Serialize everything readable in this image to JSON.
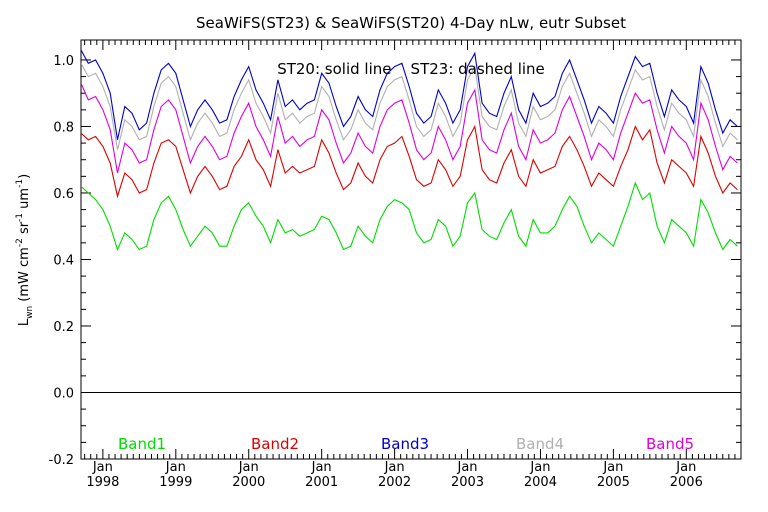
{
  "chart_data": {
    "type": "line",
    "title": "SeaWiFS(ST23) & SeaWiFS(ST20) 4-Day nLw, eutr Subset",
    "annotation": "ST20: solid line    ST23: dashed line",
    "ylabel": "L_wn (mW cm^-2 sr^-1 um^-1)",
    "ylabel_parts": {
      "main": "L",
      "sub": "wn",
      "unit_open": " (mW cm",
      "sup1": "-2",
      "unit_mid1": " sr",
      "sup2": "-1",
      "unit_mid2": " um",
      "sup3": "-1",
      "unit_close": ")"
    },
    "xlim": [
      1997.7,
      2006.75
    ],
    "ylim": [
      -0.2,
      1.06
    ],
    "yticks": [
      "-0.2",
      "0.0",
      "0.2",
      "0.4",
      "0.6",
      "0.8",
      "1.0"
    ],
    "ytick_values": [
      -0.2,
      0.0,
      0.2,
      0.4,
      0.6,
      0.8,
      1.0
    ],
    "xticks_month": [
      "Jan",
      "Jan",
      "Jan",
      "Jan",
      "Jan",
      "Jan",
      "Jan",
      "Jan",
      "Jan"
    ],
    "xticks_year": [
      "1998",
      "1999",
      "2000",
      "2001",
      "2002",
      "2003",
      "2004",
      "2005",
      "2006"
    ],
    "xtick_values": [
      1998,
      1999,
      2000,
      2001,
      2002,
      2003,
      2004,
      2005,
      2006
    ],
    "zero_line": 0.0,
    "x": [
      1997.7,
      1997.8,
      1997.9,
      1998.0,
      1998.1,
      1998.2,
      1998.3,
      1998.4,
      1998.5,
      1998.6,
      1998.7,
      1998.8,
      1998.9,
      1999.0,
      1999.1,
      1999.2,
      1999.3,
      1999.4,
      1999.5,
      1999.6,
      1999.7,
      1999.8,
      1999.9,
      2000.0,
      2000.1,
      2000.2,
      2000.3,
      2000.4,
      2000.5,
      2000.6,
      2000.7,
      2000.8,
      2000.9,
      2001.0,
      2001.1,
      2001.2,
      2001.3,
      2001.4,
      2001.5,
      2001.6,
      2001.7,
      2001.8,
      2001.9,
      2002.0,
      2002.1,
      2002.2,
      2002.3,
      2002.4,
      2002.5,
      2002.6,
      2002.7,
      2002.8,
      2002.9,
      2003.0,
      2003.1,
      2003.2,
      2003.3,
      2003.4,
      2003.5,
      2003.6,
      2003.7,
      2003.8,
      2003.9,
      2004.0,
      2004.1,
      2004.2,
      2004.3,
      2004.4,
      2004.5,
      2004.6,
      2004.7,
      2004.8,
      2004.9,
      2005.0,
      2005.1,
      2005.2,
      2005.3,
      2005.4,
      2005.5,
      2005.6,
      2005.7,
      2005.8,
      2005.9,
      2006.0,
      2006.1,
      2006.2,
      2006.3,
      2006.4,
      2006.5,
      2006.6,
      2006.7
    ],
    "series": [
      {
        "name": "Band1",
        "color": "#00dd00",
        "values": [
          0.62,
          0.6,
          0.58,
          0.55,
          0.5,
          0.43,
          0.48,
          0.46,
          0.43,
          0.44,
          0.52,
          0.57,
          0.59,
          0.55,
          0.49,
          0.44,
          0.47,
          0.5,
          0.48,
          0.44,
          0.44,
          0.5,
          0.55,
          0.57,
          0.53,
          0.5,
          0.45,
          0.52,
          0.48,
          0.49,
          0.47,
          0.48,
          0.49,
          0.53,
          0.52,
          0.48,
          0.43,
          0.44,
          0.5,
          0.47,
          0.45,
          0.52,
          0.56,
          0.58,
          0.57,
          0.55,
          0.48,
          0.45,
          0.46,
          0.52,
          0.5,
          0.44,
          0.47,
          0.57,
          0.6,
          0.49,
          0.47,
          0.46,
          0.51,
          0.55,
          0.47,
          0.44,
          0.52,
          0.48,
          0.48,
          0.5,
          0.55,
          0.59,
          0.56,
          0.5,
          0.45,
          0.48,
          0.46,
          0.44,
          0.5,
          0.56,
          0.63,
          0.58,
          0.6,
          0.5,
          0.45,
          0.52,
          0.5,
          0.48,
          0.44,
          0.58,
          0.54,
          0.48,
          0.43,
          0.46,
          0.44
        ]
      },
      {
        "name": "Band2",
        "color": "#dd0000",
        "values": [
          0.78,
          0.76,
          0.77,
          0.74,
          0.69,
          0.59,
          0.66,
          0.64,
          0.6,
          0.61,
          0.69,
          0.75,
          0.76,
          0.74,
          0.67,
          0.6,
          0.65,
          0.68,
          0.65,
          0.61,
          0.62,
          0.68,
          0.71,
          0.76,
          0.7,
          0.67,
          0.62,
          0.73,
          0.66,
          0.68,
          0.66,
          0.67,
          0.68,
          0.76,
          0.72,
          0.66,
          0.61,
          0.63,
          0.69,
          0.65,
          0.63,
          0.7,
          0.74,
          0.75,
          0.77,
          0.71,
          0.64,
          0.62,
          0.63,
          0.7,
          0.67,
          0.62,
          0.65,
          0.76,
          0.8,
          0.67,
          0.64,
          0.63,
          0.69,
          0.73,
          0.65,
          0.62,
          0.7,
          0.66,
          0.67,
          0.68,
          0.74,
          0.77,
          0.73,
          0.68,
          0.62,
          0.66,
          0.64,
          0.62,
          0.68,
          0.73,
          0.8,
          0.76,
          0.79,
          0.69,
          0.63,
          0.7,
          0.68,
          0.66,
          0.62,
          0.77,
          0.72,
          0.65,
          0.6,
          0.63,
          0.61
        ]
      },
      {
        "name": "Band3",
        "color": "#0000cc",
        "values": [
          1.03,
          0.99,
          1.0,
          0.96,
          0.9,
          0.76,
          0.86,
          0.84,
          0.79,
          0.81,
          0.9,
          0.97,
          0.99,
          0.96,
          0.88,
          0.8,
          0.85,
          0.88,
          0.85,
          0.81,
          0.82,
          0.89,
          0.94,
          0.98,
          0.91,
          0.87,
          0.82,
          0.94,
          0.86,
          0.88,
          0.85,
          0.87,
          0.88,
          0.96,
          0.93,
          0.86,
          0.8,
          0.83,
          0.89,
          0.85,
          0.83,
          0.91,
          0.96,
          0.98,
          0.99,
          0.92,
          0.84,
          0.81,
          0.83,
          0.91,
          0.87,
          0.81,
          0.85,
          0.98,
          1.02,
          0.87,
          0.84,
          0.83,
          0.9,
          0.95,
          0.85,
          0.81,
          0.9,
          0.86,
          0.87,
          0.89,
          0.96,
          1.0,
          0.94,
          0.88,
          0.81,
          0.86,
          0.84,
          0.81,
          0.89,
          0.95,
          1.01,
          0.98,
          0.99,
          0.9,
          0.83,
          0.91,
          0.88,
          0.86,
          0.81,
          0.98,
          0.93,
          0.85,
          0.78,
          0.82,
          0.8
        ]
      },
      {
        "name": "Band4",
        "color": "#b0b0b0",
        "values": [
          0.99,
          0.95,
          0.96,
          0.92,
          0.86,
          0.73,
          0.82,
          0.8,
          0.76,
          0.77,
          0.86,
          0.93,
          0.95,
          0.92,
          0.84,
          0.76,
          0.81,
          0.84,
          0.81,
          0.77,
          0.78,
          0.85,
          0.9,
          0.94,
          0.87,
          0.83,
          0.78,
          0.9,
          0.82,
          0.84,
          0.81,
          0.83,
          0.84,
          0.92,
          0.89,
          0.82,
          0.76,
          0.79,
          0.85,
          0.81,
          0.79,
          0.87,
          0.92,
          0.94,
          0.95,
          0.88,
          0.8,
          0.77,
          0.79,
          0.87,
          0.83,
          0.77,
          0.81,
          0.94,
          0.98,
          0.83,
          0.8,
          0.79,
          0.86,
          0.91,
          0.81,
          0.77,
          0.86,
          0.82,
          0.83,
          0.85,
          0.92,
          0.96,
          0.9,
          0.84,
          0.77,
          0.82,
          0.8,
          0.77,
          0.85,
          0.91,
          0.97,
          0.94,
          0.95,
          0.86,
          0.79,
          0.87,
          0.84,
          0.82,
          0.77,
          0.94,
          0.89,
          0.81,
          0.74,
          0.78,
          0.76
        ]
      },
      {
        "name": "Band5",
        "color": "#dd00dd",
        "values": [
          0.93,
          0.88,
          0.89,
          0.85,
          0.79,
          0.66,
          0.75,
          0.73,
          0.69,
          0.7,
          0.79,
          0.86,
          0.88,
          0.85,
          0.77,
          0.69,
          0.74,
          0.77,
          0.74,
          0.7,
          0.71,
          0.78,
          0.83,
          0.87,
          0.8,
          0.76,
          0.71,
          0.83,
          0.75,
          0.77,
          0.74,
          0.76,
          0.77,
          0.85,
          0.82,
          0.75,
          0.69,
          0.72,
          0.78,
          0.74,
          0.72,
          0.8,
          0.85,
          0.87,
          0.88,
          0.81,
          0.73,
          0.7,
          0.72,
          0.8,
          0.76,
          0.7,
          0.74,
          0.87,
          0.91,
          0.76,
          0.73,
          0.72,
          0.79,
          0.84,
          0.74,
          0.7,
          0.79,
          0.75,
          0.76,
          0.78,
          0.85,
          0.89,
          0.83,
          0.77,
          0.7,
          0.75,
          0.73,
          0.7,
          0.78,
          0.84,
          0.9,
          0.87,
          0.88,
          0.79,
          0.72,
          0.8,
          0.77,
          0.75,
          0.7,
          0.87,
          0.82,
          0.74,
          0.67,
          0.71,
          0.69
        ]
      }
    ]
  }
}
